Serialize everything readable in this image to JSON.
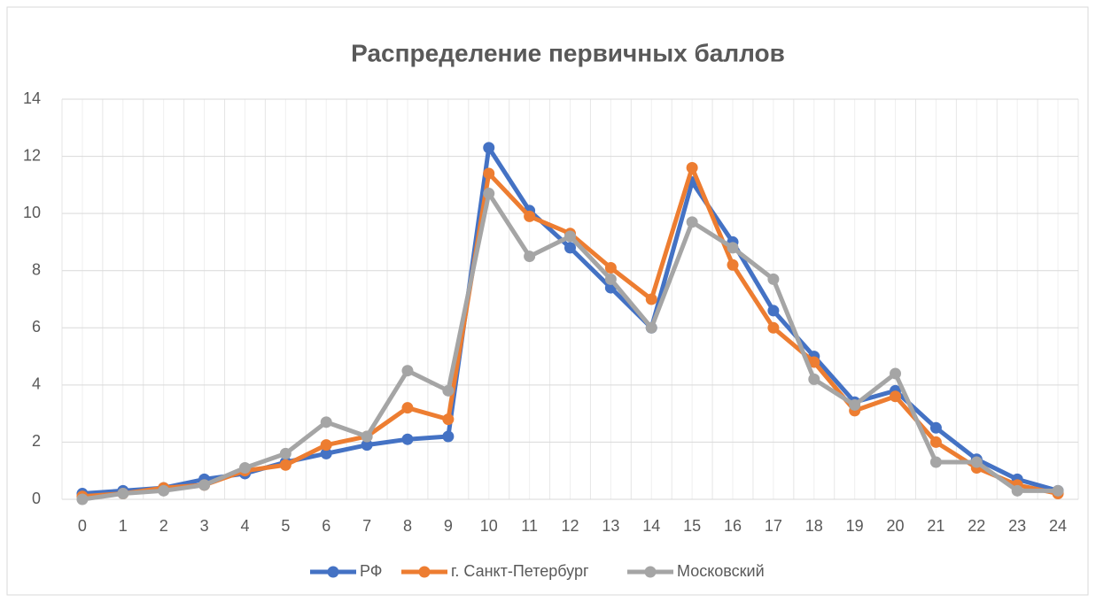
{
  "chart_data": {
    "type": "line",
    "title": "Распределение первичных баллов",
    "categories": [
      "0",
      "1",
      "2",
      "3",
      "4",
      "5",
      "6",
      "7",
      "8",
      "9",
      "10",
      "11",
      "12",
      "13",
      "14",
      "15",
      "16",
      "17",
      "18",
      "19",
      "20",
      "21",
      "22",
      "23",
      "24"
    ],
    "series": [
      {
        "name": "РФ",
        "color": "#4472c4",
        "values": [
          0.2,
          0.3,
          0.4,
          0.7,
          0.9,
          1.3,
          1.6,
          1.9,
          2.1,
          2.2,
          12.3,
          10.1,
          8.8,
          7.4,
          6.0,
          11.1,
          9.0,
          6.6,
          5.0,
          3.4,
          3.8,
          2.5,
          1.4,
          0.7,
          0.3
        ]
      },
      {
        "name": "г. Санкт-Петербург",
        "color": "#ed7d31",
        "values": [
          0.1,
          0.2,
          0.4,
          0.5,
          1.0,
          1.2,
          1.9,
          2.2,
          3.2,
          2.8,
          11.4,
          9.9,
          9.3,
          8.1,
          7.0,
          11.6,
          8.2,
          6.0,
          4.8,
          3.1,
          3.6,
          2.0,
          1.1,
          0.5,
          0.2
        ]
      },
      {
        "name": "Московский",
        "color": "#a5a5a5",
        "values": [
          0.0,
          0.2,
          0.3,
          0.5,
          1.1,
          1.6,
          2.7,
          2.2,
          4.5,
          3.8,
          10.7,
          8.5,
          9.2,
          7.7,
          6.0,
          9.7,
          8.8,
          7.7,
          4.2,
          3.3,
          4.4,
          1.3,
          1.3,
          0.3,
          0.3
        ]
      }
    ],
    "ylim": [
      0,
      14
    ],
    "yticks": [
      0,
      2,
      4,
      6,
      8,
      10,
      12,
      14
    ],
    "grid": true,
    "legend": "bottom"
  }
}
